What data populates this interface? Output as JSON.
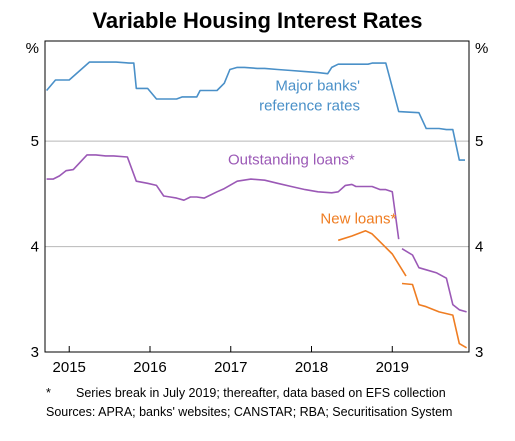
{
  "title": "Variable Housing Interest Rates",
  "footnotes": {
    "star": "*",
    "series_break": "Series break in July 2019; thereafter, data based on EFS collection",
    "sources": "Sources: APRA; banks' websites; CANSTAR; RBA; Securitisation System"
  },
  "colors": {
    "major_banks": "#4a90c8",
    "outstanding": "#9b59b6",
    "new_loans": "#ef7d22",
    "grid": "#b8b8b8",
    "frame": "#000000"
  },
  "chart_data": {
    "type": "line",
    "title": "Variable Housing Interest Rates",
    "y_unit_left": "%",
    "y_unit_right": "%",
    "ylim": [
      3,
      5.95
    ],
    "yticks": [
      3,
      4,
      5
    ],
    "ytick_labels": [
      "3",
      "4",
      "5"
    ],
    "xlim": [
      2014.7,
      2019.95
    ],
    "xtick_labels": [
      "2015",
      "2016",
      "2017",
      "2018",
      "2019"
    ],
    "xtick_label_positions": [
      2015.0,
      2016.0,
      2017.0,
      2018.0,
      2019.0
    ],
    "grid": "horizontal",
    "series": [
      {
        "name": "Major banks' reference rates",
        "annotation": [
          "Major banks'",
          "reference rates"
        ],
        "color_key": "major_banks",
        "x": [
          2014.72,
          2014.83,
          2014.92,
          2015.0,
          2015.25,
          2015.33,
          2015.54,
          2015.58,
          2015.75,
          2015.8,
          2015.83,
          2015.97,
          2016.08,
          2016.33,
          2016.4,
          2016.58,
          2016.62,
          2016.83,
          2016.92,
          2016.99,
          2017.08,
          2017.17,
          2017.33,
          2017.42,
          2017.58,
          2017.75,
          2017.92,
          2018.08,
          2018.2,
          2018.25,
          2018.33,
          2018.42,
          2018.5,
          2018.55,
          2018.65,
          2018.7,
          2018.75,
          2018.8,
          2018.92,
          2019.08,
          2019.33,
          2019.42,
          2019.5,
          2019.58,
          2019.67,
          2019.75,
          2019.83,
          2019.9
        ],
        "y": [
          5.48,
          5.58,
          5.58,
          5.58,
          5.75,
          5.75,
          5.75,
          5.75,
          5.74,
          5.74,
          5.5,
          5.5,
          5.4,
          5.4,
          5.42,
          5.42,
          5.48,
          5.48,
          5.55,
          5.68,
          5.7,
          5.7,
          5.69,
          5.69,
          5.68,
          5.67,
          5.66,
          5.65,
          5.64,
          5.7,
          5.73,
          5.73,
          5.73,
          5.73,
          5.73,
          5.73,
          5.74,
          5.74,
          5.74,
          5.28,
          5.27,
          5.12,
          5.12,
          5.12,
          5.11,
          5.11,
          4.82,
          4.82
        ]
      },
      {
        "name": "Outstanding loans*",
        "annotation": [
          "Outstanding loans*"
        ],
        "color_key": "outstanding",
        "x": [
          2014.72,
          2014.8,
          2014.88,
          2014.96,
          2015.05,
          2015.22,
          2015.33,
          2015.45,
          2015.55,
          2015.72,
          2015.83,
          2015.97,
          2016.08,
          2016.17,
          2016.25,
          2016.33,
          2016.42,
          2016.5,
          2016.58,
          2016.67,
          2016.83,
          2016.92,
          2017.08,
          2017.25,
          2017.42,
          2017.58,
          2017.75,
          2017.92,
          2018.08,
          2018.25,
          2018.33,
          2018.42,
          2018.5,
          2018.55,
          2018.65,
          2018.75,
          2018.85,
          2018.92,
          2019.0,
          2019.08
        ],
        "y": [
          4.64,
          4.64,
          4.67,
          4.72,
          4.73,
          4.87,
          4.87,
          4.86,
          4.86,
          4.85,
          4.62,
          4.6,
          4.58,
          4.48,
          4.47,
          4.46,
          4.44,
          4.47,
          4.47,
          4.46,
          4.52,
          4.55,
          4.62,
          4.64,
          4.63,
          4.6,
          4.57,
          4.54,
          4.52,
          4.51,
          4.52,
          4.58,
          4.59,
          4.57,
          4.57,
          4.57,
          4.54,
          4.54,
          4.52,
          4.07
        ]
      },
      {
        "name": "Outstanding loans* (EFS collection)",
        "color_key": "outstanding",
        "x": [
          2019.12,
          2019.25,
          2019.33,
          2019.42,
          2019.55,
          2019.67,
          2019.75,
          2019.83,
          2019.92
        ],
        "y": [
          3.98,
          3.92,
          3.8,
          3.78,
          3.75,
          3.7,
          3.45,
          3.4,
          3.38
        ]
      },
      {
        "name": "New loans*",
        "annotation": [
          "New loans*"
        ],
        "color_key": "new_loans",
        "x": [
          2018.33,
          2018.5,
          2018.67,
          2018.75,
          2019.0,
          2019.17
        ],
        "y": [
          4.06,
          4.1,
          4.15,
          4.12,
          3.93,
          3.72
        ]
      },
      {
        "name": "New loans* (EFS collection)",
        "color_key": "new_loans",
        "x": [
          2019.12,
          2019.25,
          2019.33,
          2019.42,
          2019.58,
          2019.75,
          2019.83,
          2019.92
        ],
        "y": [
          3.65,
          3.64,
          3.45,
          3.43,
          3.38,
          3.35,
          3.08,
          3.04
        ]
      }
    ]
  }
}
